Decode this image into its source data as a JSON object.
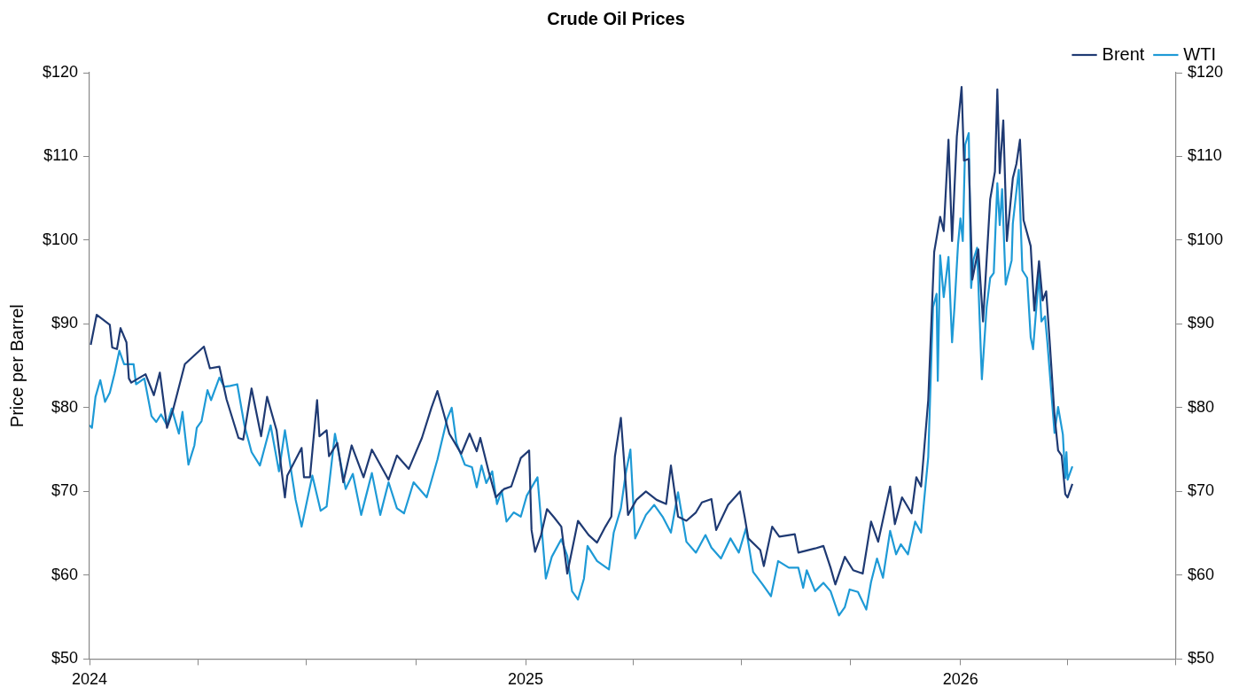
{
  "chart_data": {
    "type": "line",
    "title": "Crude Oil Prices",
    "ylabel": "Price per Barrel",
    "legend": "top right",
    "marker": "none",
    "line_style": "solid",
    "xlim": [
      "2024-01-01",
      "2026-07-01"
    ],
    "xticks": [
      {
        "value": "2024-01-01",
        "label": "2024"
      },
      {
        "value": "2024-04-01",
        "label": null
      },
      {
        "value": "2024-07-01",
        "label": null
      },
      {
        "value": "2024-10-01",
        "label": null
      },
      {
        "value": "2025-01-01",
        "label": "2025"
      },
      {
        "value": "2025-04-01",
        "label": null
      },
      {
        "value": "2025-07-01",
        "label": null
      },
      {
        "value": "2025-10-01",
        "label": null
      },
      {
        "value": "2026-01-01",
        "label": "2026"
      },
      {
        "value": "2026-04-01",
        "label": null
      },
      {
        "value": "2026-07-01",
        "label": null
      }
    ],
    "ylim": [
      50,
      120
    ],
    "yticks": [
      {
        "value": 50,
        "label": "$50"
      },
      {
        "value": 60,
        "label": "$60"
      },
      {
        "value": 70,
        "label": "$70"
      },
      {
        "value": 80,
        "label": "$80"
      },
      {
        "value": 90,
        "label": "$90"
      },
      {
        "value": 100,
        "label": "$100"
      },
      {
        "value": 110,
        "label": "$110"
      },
      {
        "value": 120,
        "label": "$120"
      }
    ],
    "y2lim": [
      50,
      120
    ],
    "y2ticks": [
      {
        "value": 50,
        "label": "$50"
      },
      {
        "value": 60,
        "label": "$60"
      },
      {
        "value": 70,
        "label": "$70"
      },
      {
        "value": 80,
        "label": "$80"
      },
      {
        "value": 90,
        "label": "$90"
      },
      {
        "value": 100,
        "label": "$100"
      },
      {
        "value": 110,
        "label": "$110"
      },
      {
        "value": 120,
        "label": "$120"
      }
    ],
    "series": [
      {
        "name": "Brent",
        "color": "#1f3a73",
        "x": [
          "2024-01-02",
          "2024-01-07",
          "2024-01-18",
          "2024-01-20",
          "2024-01-24",
          "2024-01-27",
          "2024-02-01",
          "2024-02-03",
          "2024-02-05",
          "2024-02-17",
          "2024-02-24",
          "2024-02-29",
          "2024-03-06",
          "2024-03-11",
          "2024-03-21",
          "2024-04-06",
          "2024-04-11",
          "2024-04-19",
          "2024-04-25",
          "2024-05-05",
          "2024-05-09",
          "2024-05-16",
          "2024-05-24",
          "2024-05-29",
          "2024-06-06",
          "2024-06-13",
          "2024-06-15",
          "2024-06-27",
          "2024-06-29",
          "2024-07-04",
          "2024-07-10",
          "2024-07-12",
          "2024-07-18",
          "2024-07-20",
          "2024-07-27",
          "2024-08-01",
          "2024-08-08",
          "2024-08-18",
          "2024-08-25",
          "2024-09-08",
          "2024-09-15",
          "2024-09-25",
          "2024-10-06",
          "2024-10-14",
          "2024-10-19",
          "2024-10-23",
          "2024-10-29",
          "2024-11-08",
          "2024-11-15",
          "2024-11-21",
          "2024-11-24",
          "2024-12-01",
          "2024-12-07",
          "2024-12-14",
          "2024-12-20",
          "2024-12-28",
          "2025-01-04",
          "2025-01-06",
          "2025-01-09",
          "2025-01-14",
          "2025-01-19",
          "2025-01-25",
          "2025-01-31",
          "2025-02-05",
          "2025-02-10",
          "2025-02-14",
          "2025-02-23",
          "2025-03-02",
          "2025-03-09",
          "2025-03-14",
          "2025-03-17",
          "2025-03-22",
          "2025-03-28",
          "2025-04-04",
          "2025-04-12",
          "2025-04-21",
          "2025-04-29",
          "2025-05-03",
          "2025-05-09",
          "2025-05-16",
          "2025-05-24",
          "2025-05-29",
          "2025-06-06",
          "2025-06-10",
          "2025-06-20",
          "2025-06-30",
          "2025-07-04",
          "2025-07-07",
          "2025-07-17",
          "2025-07-20",
          "2025-07-27",
          "2025-08-02",
          "2025-08-15",
          "2025-08-18",
          "2025-09-01",
          "2025-09-08",
          "2025-09-14",
          "2025-09-18",
          "2025-09-26",
          "2025-10-03",
          "2025-10-11",
          "2025-10-18",
          "2025-10-24",
          "2025-11-03",
          "2025-11-07",
          "2025-11-13",
          "2025-11-21",
          "2025-11-25",
          "2025-11-29",
          "2025-12-05",
          "2025-12-10",
          "2025-12-15",
          "2025-12-18",
          "2025-12-22",
          "2025-12-25",
          "2025-12-29",
          "2026-01-02",
          "2026-01-04",
          "2026-01-08",
          "2026-01-11",
          "2026-01-16",
          "2026-01-20",
          "2026-01-26",
          "2026-01-30",
          "2026-02-01",
          "2026-02-03",
          "2026-02-06",
          "2026-02-09",
          "2026-02-14",
          "2026-02-17",
          "2026-02-20",
          "2026-02-23",
          "2026-03-01",
          "2026-03-04",
          "2026-03-08",
          "2026-03-11",
          "2026-03-14",
          "2026-03-17",
          "2026-03-21",
          "2026-03-24",
          "2026-03-27",
          "2026-03-30",
          "2026-04-01",
          "2026-04-05"
        ],
        "values": [
          87.5,
          91.1,
          89.9,
          87.2,
          87,
          89.5,
          87.8,
          83.5,
          83,
          84,
          81.5,
          84.2,
          77.6,
          79.7,
          85.2,
          87.3,
          84.7,
          84.9,
          81,
          76.4,
          76.2,
          82.3,
          76.6,
          81.3,
          77.3,
          69.3,
          71.9,
          75.2,
          71.7,
          71.7,
          80.9,
          76.6,
          77.3,
          74.2,
          75.8,
          71.1,
          75.5,
          71.7,
          75,
          71.4,
          74.3,
          72.7,
          76.4,
          80,
          82,
          80,
          76.9,
          74.5,
          76.9,
          74.8,
          76.4,
          72.4,
          69.3,
          70.3,
          70.6,
          74,
          74.9,
          65.4,
          62.8,
          64.8,
          67.9,
          66.9,
          65.8,
          60.2,
          63.7,
          66.5,
          64.8,
          63.9,
          65.8,
          67,
          74.2,
          78.8,
          67.2,
          69,
          70,
          69,
          68.5,
          73.1,
          67,
          66.5,
          67.5,
          68.7,
          69.1,
          65.4,
          68.4,
          70,
          66.9,
          64.4,
          63,
          61.1,
          65.8,
          64.6,
          64.9,
          62.7,
          63.2,
          63.5,
          60.9,
          58.9,
          62.2,
          60.6,
          60.2,
          66.4,
          64,
          70.6,
          66.1,
          69.3,
          67.4,
          71.7,
          70.6,
          80.9,
          98.6,
          102.8,
          101.1,
          112,
          99.9,
          112.4,
          118.3,
          109.5,
          109.7,
          95.3,
          98.9,
          90.3,
          104.9,
          108.2,
          118,
          108,
          114.3,
          99.9,
          107.4,
          109.1,
          112,
          102.4,
          99.3,
          91.6,
          97.5,
          92.8,
          93.9,
          87.8,
          79.1,
          74.9,
          74.3,
          69.7,
          69.3,
          70.9
        ]
      },
      {
        "name": "WTI",
        "color": "#1e9ad6",
        "x": [
          "2024-01-01",
          "2024-01-03",
          "2024-01-06",
          "2024-01-10",
          "2024-01-14",
          "2024-01-18",
          "2024-01-22",
          "2024-01-26",
          "2024-01-30",
          "2024-02-07",
          "2024-02-09",
          "2024-02-16",
          "2024-02-22",
          "2024-02-26",
          "2024-03-01",
          "2024-03-06",
          "2024-03-10",
          "2024-03-16",
          "2024-03-19",
          "2024-03-24",
          "2024-03-29",
          "2024-03-31",
          "2024-04-04",
          "2024-04-09",
          "2024-04-12",
          "2024-04-19",
          "2024-04-23",
          "2024-04-28",
          "2024-05-04",
          "2024-05-10",
          "2024-05-16",
          "2024-05-23",
          "2024-06-01",
          "2024-06-08",
          "2024-06-13",
          "2024-06-22",
          "2024-06-27",
          "2024-07-06",
          "2024-07-13",
          "2024-07-18",
          "2024-07-25",
          "2024-08-03",
          "2024-08-09",
          "2024-08-16",
          "2024-08-25",
          "2024-09-01",
          "2024-09-08",
          "2024-09-15",
          "2024-09-21",
          "2024-09-29",
          "2024-10-10",
          "2024-10-19",
          "2024-10-27",
          "2024-10-31",
          "2024-11-04",
          "2024-11-11",
          "2024-11-17",
          "2024-11-21",
          "2024-11-25",
          "2024-11-29",
          "2024-12-04",
          "2024-12-08",
          "2024-12-12",
          "2024-12-16",
          "2024-12-22",
          "2024-12-28",
          "2025-01-02",
          "2025-01-11",
          "2025-01-18",
          "2025-01-23",
          "2025-01-31",
          "2025-02-05",
          "2025-02-09",
          "2025-02-14",
          "2025-02-19",
          "2025-02-22",
          "2025-03-02",
          "2025-03-12",
          "2025-03-16",
          "2025-03-22",
          "2025-03-26",
          "2025-03-30",
          "2025-04-03",
          "2025-04-12",
          "2025-04-19",
          "2025-04-26",
          "2025-05-03",
          "2025-05-09",
          "2025-05-16",
          "2025-05-24",
          "2025-06-01",
          "2025-06-06",
          "2025-06-14",
          "2025-06-22",
          "2025-06-29",
          "2025-07-05",
          "2025-07-11",
          "2025-07-19",
          "2025-07-26",
          "2025-08-01",
          "2025-08-10",
          "2025-08-18",
          "2025-08-22",
          "2025-08-25",
          "2025-09-01",
          "2025-09-08",
          "2025-09-14",
          "2025-09-21",
          "2025-09-26",
          "2025-09-30",
          "2025-10-07",
          "2025-10-14",
          "2025-10-18",
          "2025-10-23",
          "2025-10-28",
          "2025-11-03",
          "2025-11-08",
          "2025-11-12",
          "2025-11-18",
          "2025-11-24",
          "2025-11-29",
          "2025-12-05",
          "2025-12-09",
          "2025-12-12",
          "2025-12-13",
          "2025-12-15",
          "2025-12-18",
          "2025-12-22",
          "2025-12-25",
          "2025-12-27",
          "2025-12-30",
          "2026-01-01",
          "2026-01-03",
          "2026-01-05",
          "2026-01-08",
          "2026-01-10",
          "2026-01-12",
          "2026-01-15",
          "2026-01-17",
          "2026-01-19",
          "2026-01-23",
          "2026-01-26",
          "2026-01-29",
          "2026-02-01",
          "2026-02-03",
          "2026-02-05",
          "2026-02-08",
          "2026-02-13",
          "2026-02-14",
          "2026-02-19",
          "2026-02-22",
          "2026-02-26",
          "2026-03-01",
          "2026-03-03",
          "2026-03-08",
          "2026-03-10",
          "2026-03-13",
          "2026-03-15",
          "2026-03-21",
          "2026-03-24",
          "2026-03-28",
          "2026-03-30",
          "2026-03-31",
          "2026-04-01",
          "2026-04-05"
        ],
        "values": [
          77.9,
          77.6,
          81.3,
          83.3,
          80.7,
          81.8,
          84.1,
          86.8,
          85.2,
          85.2,
          82.8,
          83.5,
          79,
          78.3,
          79.2,
          77.9,
          79.9,
          76.9,
          79.5,
          73.2,
          75.5,
          77.6,
          78.4,
          82.1,
          80.9,
          83.6,
          82.5,
          82.6,
          82.8,
          77.9,
          74.7,
          73.1,
          77.9,
          72.4,
          77.3,
          69,
          65.8,
          71.9,
          67.7,
          68.2,
          76.9,
          70.3,
          72.1,
          67.2,
          72.2,
          67.2,
          71.1,
          68,
          67.4,
          71.1,
          69.3,
          73.8,
          78.6,
          80,
          75.8,
          73.2,
          72.9,
          70.5,
          73.1,
          71,
          72.4,
          68.5,
          70.1,
          66.4,
          67.5,
          67,
          69.5,
          71.7,
          59.6,
          62.2,
          64.3,
          62.3,
          58.1,
          57.1,
          59.6,
          63.5,
          61.7,
          60.7,
          65.1,
          68,
          72.1,
          75,
          64.4,
          67.2,
          68.4,
          67,
          65.1,
          69.9,
          64,
          62.7,
          64.8,
          63.3,
          62,
          64.4,
          62.7,
          65.6,
          60.4,
          58.9,
          57.5,
          61.7,
          60.9,
          60.9,
          58.5,
          60.6,
          58.1,
          59.1,
          58.1,
          55.2,
          56.2,
          58.3,
          58,
          55.9,
          59.2,
          62,
          59.7,
          65.3,
          62.5,
          63.7,
          62.5,
          66.4,
          65.1,
          74.1,
          92,
          93.6,
          83.2,
          98.2,
          93.2,
          98,
          87.8,
          92,
          99.5,
          102.6,
          99.9,
          111.4,
          112.8,
          94.3,
          97.7,
          99.1,
          91.1,
          83.4,
          92,
          95.5,
          96.1,
          106.8,
          101.8,
          106.1,
          94.7,
          97.6,
          102,
          108.4,
          96.4,
          95.5,
          88.4,
          87,
          96.1,
          90.3,
          90.9,
          87.8,
          77,
          80.1,
          76.8,
          71.6,
          74.7,
          71.4,
          73
        ]
      }
    ]
  }
}
